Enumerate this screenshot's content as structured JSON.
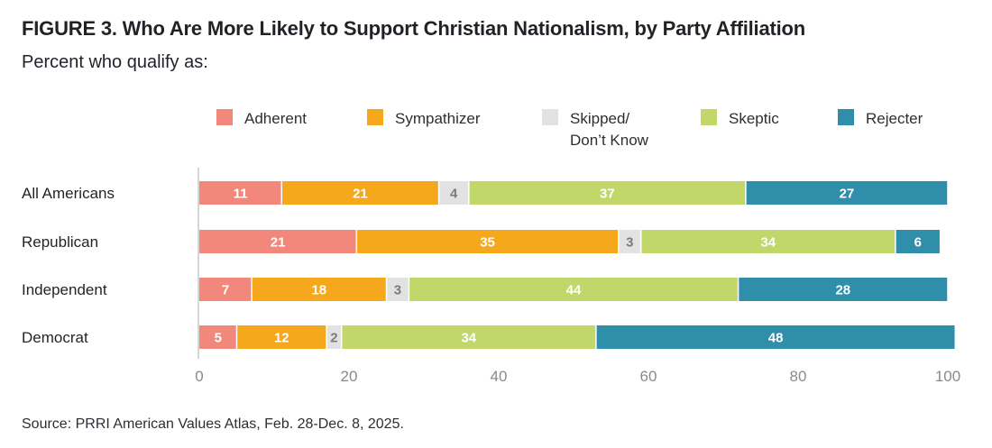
{
  "chart_data": {
    "type": "bar",
    "orientation": "horizontal",
    "stacked": true,
    "title": "FIGURE 3.  Who Are More Likely to Support Christian Nationalism, by Party Affiliation",
    "subtitle": "Percent who qualify as:",
    "xlabel": "",
    "ylabel": "",
    "xlim": [
      0,
      100
    ],
    "x_ticks": [
      0,
      20,
      40,
      60,
      80,
      100
    ],
    "grid": false,
    "legend_position": "top",
    "categories": [
      "All Americans",
      "Republican",
      "Independent",
      "Democrat"
    ],
    "series": [
      {
        "name": "Adherent",
        "legend_lines": [
          "Adherent"
        ],
        "color": "#f2887b",
        "label_color": "#ffffff",
        "values": [
          11,
          21,
          7,
          5
        ]
      },
      {
        "name": "Sympathizer",
        "legend_lines": [
          "Sympathizer"
        ],
        "color": "#f5a81c",
        "label_color": "#ffffff",
        "values": [
          21,
          35,
          18,
          12
        ]
      },
      {
        "name": "Skipped/ Don't Know",
        "legend_lines": [
          "Skipped/",
          "Don’t Know"
        ],
        "color": "#e2e2e2",
        "label_color": "#7a7a7a",
        "values": [
          4,
          3,
          3,
          2
        ]
      },
      {
        "name": "Skeptic",
        "legend_lines": [
          "Skeptic"
        ],
        "color": "#c1d76a",
        "label_color": "#ffffff",
        "values": [
          37,
          34,
          44,
          34
        ]
      },
      {
        "name": "Rejecter",
        "legend_lines": [
          "Rejecter"
        ],
        "color": "#2f8fab",
        "label_color": "#ffffff",
        "values": [
          27,
          6,
          28,
          48
        ]
      }
    ]
  },
  "header": {
    "title": "FIGURE 3.  Who Are More Likely to Support Christian Nationalism, by Party Affiliation",
    "subtitle": "Percent who qualify as:"
  },
  "footer": {
    "source": "Source: PRRI American Values Atlas, Feb. 28-Dec. 8, 2025."
  },
  "colors": {
    "axis": "#d6d6d6",
    "tick_text": "#8a8a8a",
    "text": "#1f2328"
  }
}
